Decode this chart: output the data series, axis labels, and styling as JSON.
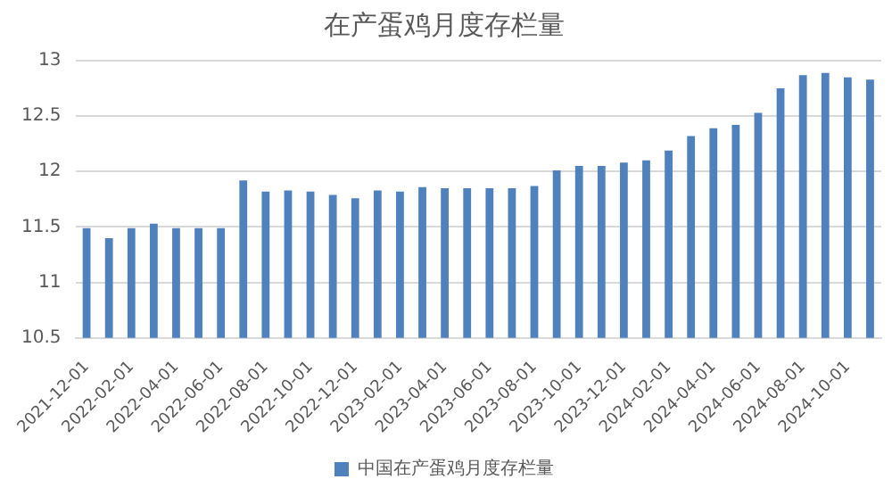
{
  "chart_data": {
    "type": "bar",
    "title": "在产蛋鸡月度存栏量",
    "categories": [
      "2021-12-01",
      null,
      "2022-02-01",
      null,
      "2022-04-01",
      null,
      "2022-06-01",
      null,
      "2022-08-01",
      null,
      "2022-10-01",
      null,
      "2022-12-01",
      null,
      "2023-02-01",
      null,
      "2023-04-01",
      null,
      "2023-06-01",
      null,
      "2023-08-01",
      null,
      "2023-10-01",
      null,
      "2023-12-01",
      null,
      "2024-02-01",
      null,
      "2024-04-01",
      null,
      "2024-06-01",
      null,
      "2024-08-01",
      null,
      "2024-10-01",
      null
    ],
    "series": [
      {
        "name": "中国在产蛋鸡月度存栏量",
        "color": "#4f81bd",
        "values": [
          11.49,
          11.4,
          11.49,
          11.53,
          11.49,
          11.49,
          11.49,
          11.92,
          11.82,
          11.83,
          11.82,
          11.79,
          11.76,
          11.83,
          11.82,
          11.86,
          11.85,
          11.85,
          11.85,
          11.85,
          11.87,
          12.01,
          12.05,
          12.05,
          12.08,
          12.1,
          12.19,
          12.32,
          12.39,
          12.42,
          12.53,
          12.75,
          12.87,
          12.89,
          12.85,
          12.83
        ]
      }
    ],
    "ylim": [
      10.5,
      13
    ],
    "yticks": [
      10.5,
      11,
      11.5,
      12,
      12.5,
      13
    ],
    "grid": "y",
    "legend": "bottom"
  }
}
